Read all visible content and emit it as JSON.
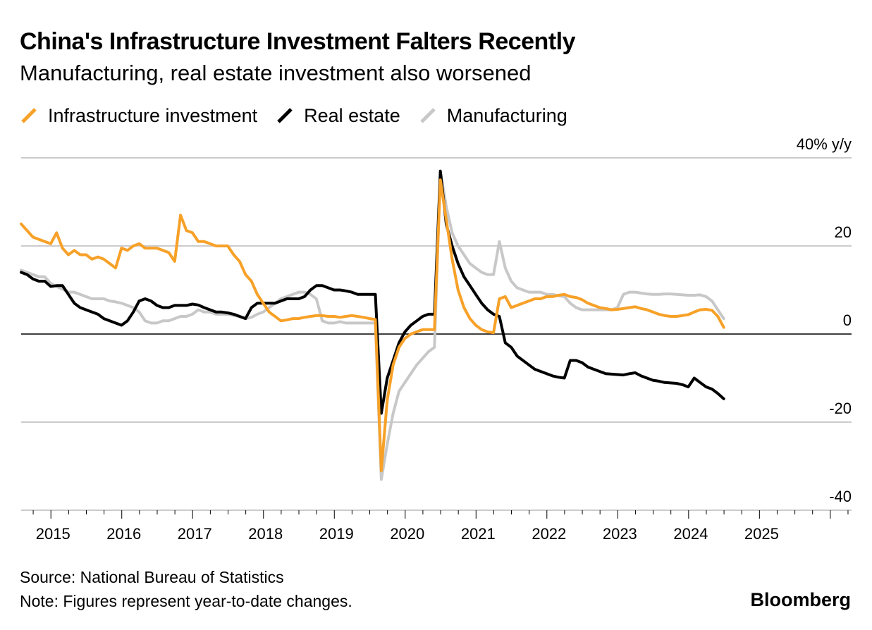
{
  "header": {
    "title": "China's Infrastructure Investment Falters Recently",
    "subtitle": "Manufacturing, real estate investment also worsened"
  },
  "legend": {
    "items": [
      {
        "label": "Infrastructure investment",
        "color": "#F7A128"
      },
      {
        "label": "Real estate",
        "color": "#000000"
      },
      {
        "label": "Manufacturing",
        "color": "#C8C8C8"
      }
    ]
  },
  "footer": {
    "source": "Source: National Bureau of Statistics",
    "note": "Note: Figures represent year-to-date changes.",
    "brand": "Bloomberg"
  },
  "chart_data": {
    "type": "line",
    "title": "China's Infrastructure Investment Falters Recently",
    "subtitle": "Manufacturing, real estate investment also worsened",
    "ylabel": "40% y/y",
    "ylim": [
      -40,
      40
    ],
    "xlim": [
      2014.58,
      2026.3
    ],
    "yticks": [
      40,
      20,
      0,
      -20,
      -40
    ],
    "ytick_labels": [
      "40% y/y",
      "20",
      "0",
      "-20",
      "-40"
    ],
    "xticks": [
      2015,
      2016,
      2017,
      2018,
      2019,
      2020,
      2021,
      2022,
      2023,
      2024,
      2025
    ],
    "xtick_labels": [
      "2015",
      "2016",
      "2017",
      "2018",
      "2019",
      "2020",
      "2021",
      "2022",
      "2023",
      "2024",
      "2025"
    ],
    "x_start": 2014.58,
    "x_step": 0.08333,
    "series": [
      {
        "name": "Manufacturing",
        "color": "#C8C8C8",
        "values": [
          14.5,
          14,
          13.5,
          13,
          13,
          11.5,
          10.8,
          10.2,
          9.5,
          9.5,
          9,
          8.5,
          8,
          8,
          8,
          7.5,
          7.3,
          7.0,
          6.5,
          6.0,
          5.0,
          3.0,
          2.5,
          2.5,
          3.0,
          3.0,
          3.5,
          4.0,
          4.0,
          4.5,
          5.5,
          5.0,
          5.0,
          4.5,
          4.5,
          4.5,
          4.2,
          4.0,
          3.5,
          3.8,
          4.5,
          5.0,
          6.0,
          7.0,
          8.0,
          8.5,
          9.0,
          9.5,
          9.5,
          9.0,
          8.0,
          3.0,
          2.5,
          2.5,
          2.8,
          2.5,
          2.5,
          2.5,
          2.5,
          2.5,
          2.5,
          -33,
          -25,
          -18,
          -13,
          -11,
          -9,
          -7,
          -5.5,
          -4,
          -3,
          37,
          29,
          23,
          20,
          18,
          16,
          15,
          14,
          13.5,
          13.5,
          21,
          15,
          12,
          10.5,
          10,
          9.5,
          9.5,
          9.5,
          9,
          9,
          8.7,
          8.5,
          7,
          6,
          5.5,
          5.5,
          5.5,
          5.5,
          5.5,
          5.5,
          6,
          9,
          9.5,
          9.5,
          9.3,
          9.1,
          9.0,
          9.0,
          9.1,
          9.1,
          9.0,
          8.9,
          8.8,
          8.8,
          8.9,
          8.5,
          7.5,
          5.5,
          3.5
        ]
      },
      {
        "name": "Real estate",
        "color": "#000000",
        "values": [
          14,
          13.5,
          12.5,
          12,
          12,
          10.8,
          11,
          11,
          9,
          7,
          6,
          5.5,
          5,
          4.5,
          3.5,
          3,
          2.5,
          2.0,
          3.0,
          5.0,
          7.5,
          8.0,
          7.5,
          6.5,
          6.0,
          6.0,
          6.5,
          6.5,
          6.5,
          6.8,
          6.6,
          6.0,
          5.5,
          5.0,
          5.0,
          4.8,
          4.5,
          4.0,
          3.5,
          6.0,
          7.0,
          7.0,
          7.0,
          7.0,
          7.5,
          8.0,
          8.0,
          8.0,
          8.5,
          10.0,
          11.0,
          11.0,
          10.5,
          10.0,
          10.0,
          9.8,
          9.5,
          9.0,
          9.0,
          9.0,
          9.0,
          -18,
          -10,
          -6,
          -2,
          0.5,
          2,
          3,
          4,
          4.5,
          4.5,
          37,
          25,
          20,
          16,
          13,
          11,
          9,
          7,
          5.5,
          4.5,
          4,
          -2,
          -3,
          -5,
          -6,
          -7,
          -8,
          -8.5,
          -9,
          -9.5,
          -9.8,
          -10,
          -6,
          -6,
          -6.5,
          -7.5,
          -8,
          -8.5,
          -9,
          -9.1,
          -9.2,
          -9.3,
          -9.0,
          -8.8,
          -9.5,
          -10.0,
          -10.5,
          -10.7,
          -11.0,
          -11.1,
          -11.2,
          -11.5,
          -12.0,
          -10.0,
          -11.0,
          -12.0,
          -12.5,
          -13.5,
          -14.7
        ]
      },
      {
        "name": "Infrastructure investment",
        "color": "#F7A128",
        "values": [
          25,
          23.5,
          22,
          21.5,
          21,
          20.5,
          23,
          19.5,
          18,
          19,
          18,
          18,
          17,
          17.5,
          17,
          16,
          15,
          19.5,
          19,
          20,
          20.5,
          19.5,
          19.5,
          19.5,
          19,
          18.5,
          16.5,
          27,
          23.5,
          23,
          21,
          21,
          20.5,
          20,
          20,
          20,
          18,
          16.5,
          13.5,
          12,
          9,
          7,
          5,
          4,
          3,
          3.2,
          3.5,
          3.5,
          3.8,
          4.0,
          4.2,
          4.2,
          4.0,
          4.0,
          3.8,
          4.0,
          4.2,
          4.0,
          3.8,
          3.5,
          3.3,
          -31,
          -15,
          -7,
          -3,
          -1,
          0,
          0.5,
          1,
          1,
          1,
          35,
          26,
          17,
          10,
          6,
          3.5,
          2,
          1,
          0.5,
          0.3,
          8,
          8.5,
          6,
          6.5,
          7,
          7.5,
          8,
          8,
          8.5,
          8.5,
          8.8,
          9,
          8.5,
          8.3,
          7.8,
          7.0,
          6.5,
          6.0,
          5.8,
          5.5,
          5.6,
          5.8,
          6.0,
          6.2,
          5.8,
          5.5,
          5.0,
          4.5,
          4.2,
          4.0,
          4.0,
          4.2,
          4.4,
          5.0,
          5.5,
          5.6,
          5.4,
          4.0,
          1.5
        ]
      }
    ]
  }
}
